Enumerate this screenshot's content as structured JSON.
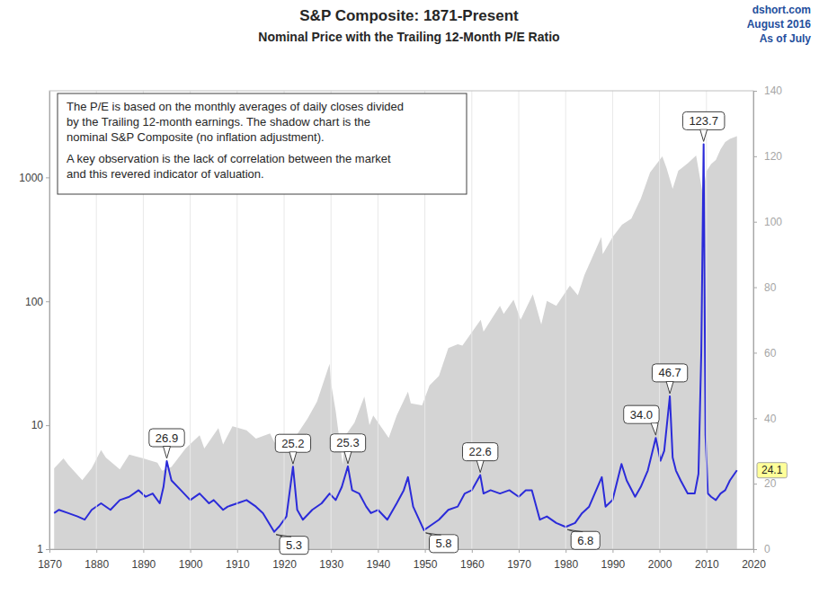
{
  "chart_data": {
    "type": "line",
    "title": "S&P Composite: 1871-Present",
    "subtitle": "Nominal Price with the Trailing 12-Month P/E Ratio",
    "source": [
      "dshort.com",
      "August 2016",
      "As of July"
    ],
    "note": [
      [
        "The P/E is based on the monthly averages of daily closes divided",
        "by the Trailing 12-month earnings. The shadow chart is the",
        "nominal S&P Composite (no inflation adjustment)."
      ],
      [
        "A key observation is the lack of correlation between the market",
        "and this revered indicator of valuation."
      ]
    ],
    "log": "y",
    "grid": true,
    "xlim": [
      1870,
      2020
    ],
    "xticks": [
      1870,
      1880,
      1890,
      1900,
      1910,
      1920,
      1930,
      1940,
      1950,
      1960,
      1970,
      1980,
      1990,
      2000,
      2010,
      2020
    ],
    "ylim": [
      1,
      5000
    ],
    "yticks": [
      1,
      10,
      100,
      1000
    ],
    "y2lim": [
      0,
      140
    ],
    "y2ticks": [
      0,
      20,
      40,
      60,
      80,
      100,
      120,
      140
    ],
    "series": [
      {
        "type": "area",
        "color": "#d4d4d4",
        "x": [
          1871,
          1873,
          1874,
          1877,
          1879,
          1881,
          1882,
          1885,
          1887,
          1890,
          1893,
          1894,
          1896,
          1899,
          1902,
          1903,
          1906,
          1907,
          1909,
          1912,
          1914,
          1917,
          1918,
          1919,
          1921,
          1923,
          1925,
          1927,
          1929.7,
          1930,
          1931,
          1932.5,
          1933,
          1935,
          1937.1,
          1938.2,
          1939,
          1942.3,
          1944,
          1946.4,
          1947,
          1949.4,
          1951,
          1953,
          1955,
          1957,
          1958,
          1961.9,
          1962.5,
          1966,
          1966.8,
          1968.9,
          1970.4,
          1973,
          1974.8,
          1976,
          1978,
          1980.9,
          1982.6,
          1984,
          1987.6,
          1987.9,
          1990,
          1992,
          1994,
          1996,
          1998,
          2000.6,
          2001.5,
          2002.8,
          2004,
          2006,
          2007.8,
          2009.2,
          2010,
          2011,
          2012,
          2013,
          2014,
          2015,
          2016.5
        ],
        "values": [
          4.5,
          5.4,
          4.8,
          3.6,
          4.5,
          6.3,
          5.5,
          4.4,
          5.8,
          5.4,
          5.0,
          4.3,
          4.6,
          6.5,
          8.3,
          6.5,
          9.5,
          7.0,
          9.8,
          9.1,
          7.8,
          8.6,
          7.2,
          8.5,
          6.6,
          8.7,
          11.3,
          15.5,
          31.3,
          22,
          13,
          4.8,
          8.2,
          10.5,
          17,
          10,
          12,
          7.9,
          12,
          18.7,
          15,
          14.5,
          21,
          25,
          42,
          45,
          44,
          71,
          57,
          92,
          79,
          103,
          71,
          114,
          65,
          101,
          92,
          134,
          112,
          163,
          330,
          240,
          330,
          415,
          465,
          670,
          1100,
          1480,
          1190,
          810,
          1130,
          1300,
          1500,
          735,
          1120,
          1280,
          1380,
          1680,
          1930,
          2050,
          2150
        ]
      },
      {
        "type": "line",
        "color": "#2b2bd9",
        "axis": "y2",
        "x": [
          1871,
          1872,
          1874,
          1876,
          1877.5,
          1879,
          1881,
          1883,
          1885,
          1887,
          1889,
          1890.5,
          1892,
          1893.5,
          1894.3,
          1895,
          1896,
          1898,
          1900,
          1902,
          1904,
          1905,
          1907,
          1908,
          1910,
          1912,
          1914,
          1915.5,
          1917.9,
          1919,
          1920.5,
          1921.9,
          1922.8,
          1924,
          1926,
          1928,
          1929.7,
          1931,
          1932.3,
          1933.6,
          1934.5,
          1936,
          1937.5,
          1938.5,
          1940,
          1942,
          1944,
          1945.5,
          1946.4,
          1947.5,
          1949.8,
          1951,
          1953,
          1955,
          1957,
          1958.5,
          1960,
          1961.8,
          1962.5,
          1964,
          1966,
          1968,
          1970,
          1971.5,
          1972.8,
          1974.5,
          1976,
          1978,
          1980,
          1982,
          1983.5,
          1985,
          1987.7,
          1988.5,
          1990,
          1991.9,
          1993,
          1994.8,
          1996,
          1997.5,
          1999.2,
          2000.2,
          2001,
          2002.2,
          2002.8,
          2003.5,
          2004.5,
          2006,
          2007.5,
          2008.3,
          2008.9,
          2009.4,
          2009.8,
          2010.3,
          2011,
          2012,
          2013,
          2014,
          2015,
          2016.5
        ],
        "values": [
          11,
          12,
          11,
          10,
          9,
          12,
          14,
          12,
          15,
          16,
          18,
          16,
          17,
          14,
          19,
          26.9,
          21,
          18,
          15,
          17,
          14,
          15,
          12,
          13,
          14,
          15,
          13,
          11,
          5.3,
          7,
          10,
          25.2,
          12,
          9,
          12,
          14,
          17,
          15,
          19,
          25.3,
          18,
          17,
          13,
          11,
          12,
          9,
          14,
          18,
          22,
          13,
          5.8,
          7,
          9,
          12,
          13,
          17,
          18,
          22.6,
          17,
          18,
          17,
          18,
          16,
          18,
          18,
          9,
          10,
          8,
          6.8,
          8,
          11,
          13,
          22,
          13,
          15,
          26,
          21,
          16,
          19,
          24,
          34.0,
          27,
          30,
          46.7,
          28,
          24,
          21,
          17,
          17,
          23,
          60,
          123.7,
          35,
          17,
          16,
          15,
          17,
          18,
          21,
          24.1
        ]
      }
    ],
    "annotations": [
      {
        "x": 1895,
        "value": 26.9,
        "label": "26.9"
      },
      {
        "x": 1917.9,
        "value": 5.3,
        "label": "5.3"
      },
      {
        "x": 1921.9,
        "value": 25.2,
        "label": "25.2"
      },
      {
        "x": 1933.6,
        "value": 25.3,
        "label": "25.3"
      },
      {
        "x": 1949.8,
        "value": 5.8,
        "label": "5.8"
      },
      {
        "x": 1961.8,
        "value": 22.6,
        "label": "22.6"
      },
      {
        "x": 1980,
        "value": 6.8,
        "label": "6.8"
      },
      {
        "x": 1999.2,
        "value": 34.0,
        "label": "34.0"
      },
      {
        "x": 2002.2,
        "value": 46.7,
        "label": "46.7"
      },
      {
        "x": 2009.4,
        "value": 123.7,
        "label": "123.7"
      }
    ],
    "last_value_label": {
      "value": 24.1,
      "label": "24.1"
    }
  }
}
